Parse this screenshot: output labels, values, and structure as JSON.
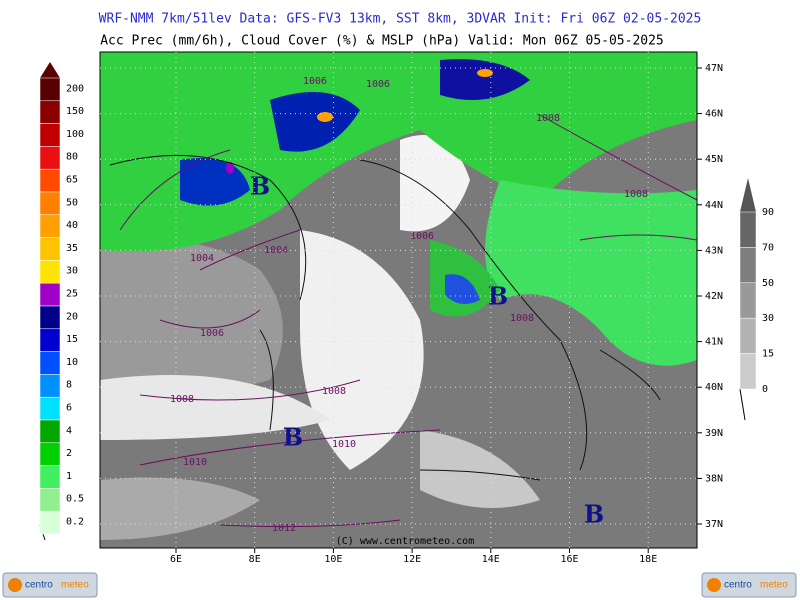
{
  "header": {
    "line1": "WRF-NMM 7km/51lev  Data: GFS-FV3 13km, SST 8km, 3DVAR  Init: Fri 06Z 02-05-2025",
    "line2": "Acc Prec (mm/6h), Cloud Cover (%) & MSLP (hPa)  Valid: Mon 06Z 05-05-2025"
  },
  "precip_legend": [
    {
      "label": "200",
      "color": "#5a0000"
    },
    {
      "label": "150",
      "color": "#8b0000"
    },
    {
      "label": "100",
      "color": "#c00000"
    },
    {
      "label": "80",
      "color": "#e81010"
    },
    {
      "label": "65",
      "color": "#ff4a00"
    },
    {
      "label": "50",
      "color": "#ff7f00"
    },
    {
      "label": "40",
      "color": "#ffa000"
    },
    {
      "label": "35",
      "color": "#ffc400"
    },
    {
      "label": "30",
      "color": "#ffe400"
    },
    {
      "label": "25",
      "color": "#a000c8"
    },
    {
      "label": "20",
      "color": "#00008c"
    },
    {
      "label": "15",
      "color": "#0000d0"
    },
    {
      "label": "10",
      "color": "#0050ff"
    },
    {
      "label": "8",
      "color": "#0090ff"
    },
    {
      "label": "6",
      "color": "#00e0ff"
    },
    {
      "label": "4",
      "color": "#00a800"
    },
    {
      "label": "2",
      "color": "#00d000"
    },
    {
      "label": "1",
      "color": "#40f060"
    },
    {
      "label": "0.5",
      "color": "#90f090"
    },
    {
      "label": "0.2",
      "color": "#d8ffd8"
    }
  ],
  "cloud_legend": [
    {
      "label": "90",
      "color": "#666666"
    },
    {
      "label": "70",
      "color": "#7f7f7f"
    },
    {
      "label": "50",
      "color": "#999999"
    },
    {
      "label": "30",
      "color": "#b3b3b3"
    },
    {
      "label": "15",
      "color": "#cccccc"
    },
    {
      "label": "0",
      "color": "#eeeeee"
    }
  ],
  "lon_labels": [
    "6E",
    "8E",
    "10E",
    "12E",
    "14E",
    "16E",
    "18E"
  ],
  "lat_labels": [
    "47N",
    "46N",
    "45N",
    "44N",
    "43N",
    "42N",
    "41N",
    "40N",
    "39N",
    "38N",
    "37N"
  ],
  "isobars": [
    "1006",
    "1006",
    "1008",
    "1008",
    "1006",
    "1004",
    "1004",
    "1006",
    "1008",
    "1008",
    "1008",
    "1010",
    "1010",
    "1012"
  ],
  "lows": [
    "B",
    "B",
    "B",
    "B"
  ],
  "copyright": "(C) www.centrometeo.com",
  "logo": [
    "centro",
    "meteo"
  ]
}
